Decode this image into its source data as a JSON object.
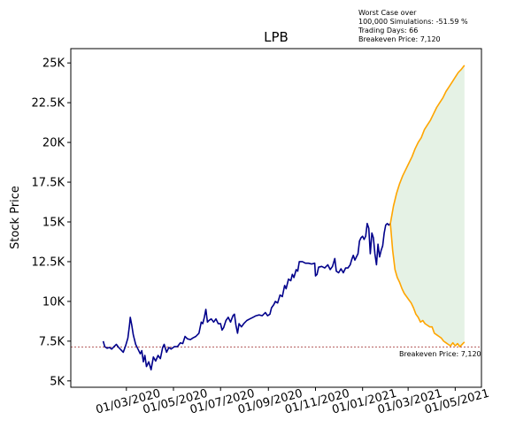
{
  "chart_data": {
    "type": "line",
    "title": "LPB",
    "xlabel": "",
    "ylabel": "Stock Price",
    "x_range": [
      "2019-12-20",
      "2021-06-04"
    ],
    "ylim": [
      4600,
      25900
    ],
    "grid": false,
    "x_tick_labels": [
      "01/03/2020",
      "01/05/2020",
      "01/07/2020",
      "01/09/2020",
      "01/11/2020",
      "01/01/2021",
      "01/03/2021",
      "01/05/2021"
    ],
    "x_tick_dates": [
      "2020-03-01",
      "2020-05-01",
      "2020-07-01",
      "2020-09-01",
      "2020-11-01",
      "2021-01-01",
      "2021-03-01",
      "2021-05-01"
    ],
    "y_tick_labels": [
      "5K",
      "7.5K",
      "10K",
      "12.5K",
      "15K",
      "17.5K",
      "20K",
      "22.5K",
      "25K"
    ],
    "y_tick_values": [
      5000,
      7500,
      10000,
      12500,
      15000,
      17500,
      20000,
      22500,
      25000
    ],
    "annotation": {
      "lines": [
        "Worst Case over",
        "100,000 Simulations: -51.59 %",
        "Trading Days: 66",
        "Breakeven Price: 7,120"
      ]
    },
    "breakeven": {
      "value": 7120,
      "label": "Breakeven Price: 7,120",
      "color": "#8b0000"
    },
    "series": [
      {
        "role": "historical",
        "color": "#00008b",
        "points": [
          [
            "2020-01-31",
            7500
          ],
          [
            "2020-02-02",
            7150
          ],
          [
            "2020-02-05",
            7050
          ],
          [
            "2020-02-08",
            7100
          ],
          [
            "2020-02-11",
            7000
          ],
          [
            "2020-02-14",
            7150
          ],
          [
            "2020-02-17",
            7300
          ],
          [
            "2020-02-20",
            7100
          ],
          [
            "2020-02-23",
            6950
          ],
          [
            "2020-02-26",
            6800
          ],
          [
            "2020-02-29",
            7200
          ],
          [
            "2020-03-03",
            7700
          ],
          [
            "2020-03-05",
            8500
          ],
          [
            "2020-03-06",
            9000
          ],
          [
            "2020-03-08",
            8500
          ],
          [
            "2020-03-10",
            7900
          ],
          [
            "2020-03-13",
            7300
          ],
          [
            "2020-03-16",
            7000
          ],
          [
            "2020-03-19",
            6700
          ],
          [
            "2020-03-21",
            6900
          ],
          [
            "2020-03-23",
            6200
          ],
          [
            "2020-03-25",
            6600
          ],
          [
            "2020-03-27",
            5900
          ],
          [
            "2020-03-30",
            6200
          ],
          [
            "2020-04-02",
            5700
          ],
          [
            "2020-04-05",
            6500
          ],
          [
            "2020-04-08",
            6250
          ],
          [
            "2020-04-11",
            6600
          ],
          [
            "2020-04-14",
            6400
          ],
          [
            "2020-04-17",
            7100
          ],
          [
            "2020-04-19",
            7300
          ],
          [
            "2020-04-22",
            6800
          ],
          [
            "2020-04-25",
            7100
          ],
          [
            "2020-04-28",
            7000
          ],
          [
            "2020-05-02",
            7150
          ],
          [
            "2020-05-06",
            7150
          ],
          [
            "2020-05-10",
            7400
          ],
          [
            "2020-05-13",
            7350
          ],
          [
            "2020-05-16",
            7800
          ],
          [
            "2020-05-19",
            7650
          ],
          [
            "2020-05-23",
            7600
          ],
          [
            "2020-05-26",
            7700
          ],
          [
            "2020-05-30",
            7800
          ],
          [
            "2020-06-03",
            8000
          ],
          [
            "2020-06-06",
            8700
          ],
          [
            "2020-06-08",
            8600
          ],
          [
            "2020-06-10",
            9000
          ],
          [
            "2020-06-12",
            9500
          ],
          [
            "2020-06-14",
            8700
          ],
          [
            "2020-06-16",
            8800
          ],
          [
            "2020-06-19",
            8900
          ],
          [
            "2020-06-22",
            8700
          ],
          [
            "2020-06-25",
            8900
          ],
          [
            "2020-06-28",
            8600
          ],
          [
            "2020-07-01",
            8600
          ],
          [
            "2020-07-03",
            8200
          ],
          [
            "2020-07-05",
            8350
          ],
          [
            "2020-07-08",
            8800
          ],
          [
            "2020-07-11",
            9000
          ],
          [
            "2020-07-14",
            8700
          ],
          [
            "2020-07-17",
            9100
          ],
          [
            "2020-07-19",
            9200
          ],
          [
            "2020-07-21",
            8500
          ],
          [
            "2020-07-23",
            8000
          ],
          [
            "2020-07-25",
            8600
          ],
          [
            "2020-07-28",
            8400
          ],
          [
            "2020-07-31",
            8600
          ],
          [
            "2020-08-04",
            8800
          ],
          [
            "2020-08-08",
            8900
          ],
          [
            "2020-08-12",
            9000
          ],
          [
            "2020-08-16",
            9100
          ],
          [
            "2020-08-20",
            9150
          ],
          [
            "2020-08-24",
            9100
          ],
          [
            "2020-08-28",
            9300
          ],
          [
            "2020-08-31",
            9100
          ],
          [
            "2020-09-03",
            9200
          ],
          [
            "2020-09-05",
            9600
          ],
          [
            "2020-09-08",
            9800
          ],
          [
            "2020-09-10",
            10000
          ],
          [
            "2020-09-13",
            9900
          ],
          [
            "2020-09-16",
            10400
          ],
          [
            "2020-09-19",
            10300
          ],
          [
            "2020-09-22",
            11000
          ],
          [
            "2020-09-24",
            10800
          ],
          [
            "2020-09-27",
            11400
          ],
          [
            "2020-09-30",
            11300
          ],
          [
            "2020-10-02",
            11700
          ],
          [
            "2020-10-04",
            11500
          ],
          [
            "2020-10-07",
            12000
          ],
          [
            "2020-10-09",
            11900
          ],
          [
            "2020-10-11",
            12500
          ],
          [
            "2020-10-15",
            12500
          ],
          [
            "2020-10-19",
            12400
          ],
          [
            "2020-10-23",
            12400
          ],
          [
            "2020-10-27",
            12350
          ],
          [
            "2020-10-31",
            12400
          ],
          [
            "2020-11-01",
            11600
          ],
          [
            "2020-11-03",
            11700
          ],
          [
            "2020-11-05",
            12150
          ],
          [
            "2020-11-09",
            12200
          ],
          [
            "2020-11-13",
            12100
          ],
          [
            "2020-11-17",
            12300
          ],
          [
            "2020-11-20",
            12000
          ],
          [
            "2020-11-23",
            12200
          ],
          [
            "2020-11-26",
            12700
          ],
          [
            "2020-11-28",
            11900
          ],
          [
            "2020-12-01",
            11800
          ],
          [
            "2020-12-04",
            12050
          ],
          [
            "2020-12-07",
            11800
          ],
          [
            "2020-12-10",
            12100
          ],
          [
            "2020-12-13",
            12100
          ],
          [
            "2020-12-16",
            12300
          ],
          [
            "2020-12-18",
            12650
          ],
          [
            "2020-12-20",
            12900
          ],
          [
            "2020-12-22",
            12600
          ],
          [
            "2020-12-24",
            12800
          ],
          [
            "2020-12-26",
            13000
          ],
          [
            "2020-12-28",
            13800
          ],
          [
            "2020-12-30",
            14000
          ],
          [
            "2021-01-01",
            14100
          ],
          [
            "2021-01-03",
            13900
          ],
          [
            "2021-01-05",
            14100
          ],
          [
            "2021-01-07",
            14900
          ],
          [
            "2021-01-09",
            14600
          ],
          [
            "2021-01-11",
            13000
          ],
          [
            "2021-01-13",
            14300
          ],
          [
            "2021-01-15",
            14000
          ],
          [
            "2021-01-17",
            13000
          ],
          [
            "2021-01-19",
            12300
          ],
          [
            "2021-01-21",
            13600
          ],
          [
            "2021-01-23",
            12800
          ],
          [
            "2021-01-25",
            13200
          ],
          [
            "2021-01-27",
            13500
          ],
          [
            "2021-01-29",
            14300
          ],
          [
            "2021-01-31",
            14800
          ],
          [
            "2021-02-02",
            14900
          ],
          [
            "2021-02-04",
            14800
          ],
          [
            "2021-02-06",
            14900
          ]
        ]
      },
      {
        "role": "simulated-upper",
        "color": "#ffa500",
        "points": [
          [
            "2021-02-06",
            14900
          ],
          [
            "2021-02-10",
            16000
          ],
          [
            "2021-02-14",
            16800
          ],
          [
            "2021-02-18",
            17400
          ],
          [
            "2021-02-22",
            17900
          ],
          [
            "2021-02-26",
            18300
          ],
          [
            "2021-03-02",
            18700
          ],
          [
            "2021-03-06",
            19100
          ],
          [
            "2021-03-10",
            19600
          ],
          [
            "2021-03-14",
            20000
          ],
          [
            "2021-03-18",
            20300
          ],
          [
            "2021-03-22",
            20800
          ],
          [
            "2021-03-26",
            21100
          ],
          [
            "2021-03-30",
            21400
          ],
          [
            "2021-04-03",
            21800
          ],
          [
            "2021-04-07",
            22200
          ],
          [
            "2021-04-11",
            22500
          ],
          [
            "2021-04-15",
            22800
          ],
          [
            "2021-04-19",
            23200
          ],
          [
            "2021-04-23",
            23500
          ],
          [
            "2021-04-27",
            23800
          ],
          [
            "2021-05-01",
            24100
          ],
          [
            "2021-05-05",
            24400
          ],
          [
            "2021-05-09",
            24600
          ],
          [
            "2021-05-13",
            24850
          ]
        ]
      },
      {
        "role": "simulated-lower",
        "color": "#ffa500",
        "points": [
          [
            "2021-02-06",
            14900
          ],
          [
            "2021-02-09",
            13200
          ],
          [
            "2021-02-12",
            12000
          ],
          [
            "2021-02-15",
            11500
          ],
          [
            "2021-02-18",
            11200
          ],
          [
            "2021-02-21",
            10800
          ],
          [
            "2021-02-24",
            10500
          ],
          [
            "2021-02-27",
            10300
          ],
          [
            "2021-03-02",
            10100
          ],
          [
            "2021-03-05",
            9900
          ],
          [
            "2021-03-08",
            9600
          ],
          [
            "2021-03-11",
            9200
          ],
          [
            "2021-03-14",
            9000
          ],
          [
            "2021-03-17",
            8700
          ],
          [
            "2021-03-20",
            8800
          ],
          [
            "2021-03-23",
            8600
          ],
          [
            "2021-03-26",
            8500
          ],
          [
            "2021-03-29",
            8400
          ],
          [
            "2021-04-01",
            8400
          ],
          [
            "2021-04-04",
            8000
          ],
          [
            "2021-04-07",
            7900
          ],
          [
            "2021-04-10",
            7800
          ],
          [
            "2021-04-13",
            7700
          ],
          [
            "2021-04-16",
            7500
          ],
          [
            "2021-04-19",
            7400
          ],
          [
            "2021-04-22",
            7300
          ],
          [
            "2021-04-25",
            7200
          ],
          [
            "2021-04-28",
            7400
          ],
          [
            "2021-05-01",
            7200
          ],
          [
            "2021-05-04",
            7350
          ],
          [
            "2021-05-07",
            7150
          ],
          [
            "2021-05-10",
            7300
          ],
          [
            "2021-05-13",
            7450
          ]
        ]
      }
    ],
    "fill_between": {
      "color": "#008000",
      "opacity": 0.1,
      "between": [
        "simulated-upper",
        "simulated-lower"
      ]
    }
  }
}
